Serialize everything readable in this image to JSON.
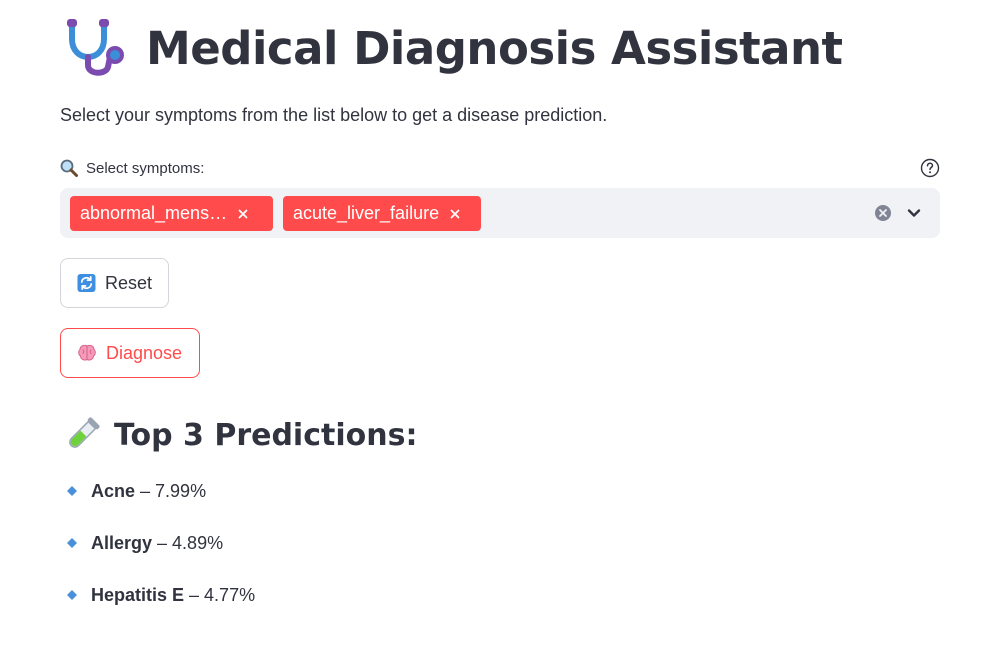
{
  "header": {
    "title": "Medical Diagnosis Assistant",
    "title_icon": "stethoscope-icon",
    "subtitle": "Select your symptoms from the list below to get a disease prediction."
  },
  "symptom_select": {
    "label": "Select symptoms:",
    "label_icon": "magnifier-icon",
    "help_icon": "help-icon",
    "selected": [
      {
        "label": "abnormal_mens…"
      },
      {
        "label": "acute_liver_failure"
      }
    ],
    "clear_icon": "clear-all-icon",
    "dropdown_icon": "chevron-down-icon"
  },
  "buttons": {
    "reset_label": "Reset",
    "reset_icon": "refresh-icon",
    "diagnose_label": "Diagnose",
    "diagnose_icon": "brain-icon"
  },
  "predictions": {
    "heading": "Top 3 Predictions:",
    "heading_icon": "test-tube-icon",
    "separator": "–",
    "items": [
      {
        "name": "Acne",
        "value": "7.99%"
      },
      {
        "name": "Allergy",
        "value": "4.89%"
      },
      {
        "name": "Hepatitis E",
        "value": "4.77%"
      }
    ]
  },
  "colors": {
    "accent": "#ff4b4b",
    "text": "#31333f",
    "input_bg": "#f0f2f6",
    "bullet": "#4a90d9"
  }
}
